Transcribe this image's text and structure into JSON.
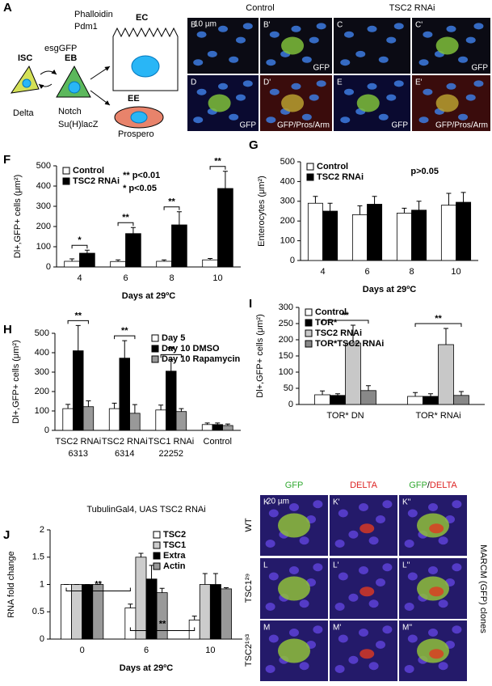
{
  "diagram": {
    "label": "A",
    "phalloidin": "Phalloidin",
    "pdm1": "Pdm1",
    "esggfp": "esgGFP",
    "isc": "ISC",
    "eb": "EB",
    "ec": "EC",
    "ee": "EE",
    "delta": "Delta",
    "notch": "Notch",
    "suh": "Su(H)lacZ",
    "prospero": "Prospero"
  },
  "micrographs": {
    "top_headers": [
      "Control",
      "TSC2 RNAi"
    ],
    "scale_bars": [
      "10 µm",
      "20 µm"
    ],
    "top_panels": [
      {
        "label": "B"
      },
      {
        "label": "B'",
        "channel": "GFP"
      },
      {
        "label": "C"
      },
      {
        "label": "C'",
        "channel": "GFP"
      },
      {
        "label": "D",
        "channel": "GFP"
      },
      {
        "label": "D'",
        "channel": "GFP/Pros/Arm"
      },
      {
        "label": "E",
        "channel": "GFP"
      },
      {
        "label": "E'",
        "channel": "GFP/Pros/Arm"
      }
    ],
    "bottom_headers": {
      "gfp": "GFP",
      "delta": "DELTA",
      "merge": [
        "GFP",
        "/",
        "DELTA"
      ]
    },
    "row_labels": [
      "WT",
      "TSC1²⁹",
      "TSC2¹⁹³"
    ],
    "side_label": "MARCM (GFP) clones",
    "bottom_panels": [
      "K",
      "K'",
      "K''",
      "L",
      "L'",
      "L''",
      "M",
      "M'",
      "M''"
    ]
  },
  "chart_data": [
    {
      "type": "bar",
      "panel": "F",
      "ylabel": "Dl+,GFP+ cells (μm²)",
      "xlabel": "Days at 29ºC",
      "categories": [
        "4",
        "6",
        "8",
        "10"
      ],
      "series": [
        {
          "name": "Control",
          "color": "#ffffff",
          "values": [
            28,
            27,
            28,
            35
          ],
          "errors": [
            12,
            8,
            7,
            7
          ]
        },
        {
          "name": "TSC2 RNAi",
          "color": "#000000",
          "values": [
            68,
            165,
            208,
            388
          ],
          "errors": [
            15,
            30,
            65,
            85
          ]
        }
      ],
      "significance": [
        "*",
        "**",
        "**",
        "**"
      ],
      "notes": [
        "** p<0.01",
        "* p<0.05"
      ],
      "ylim": [
        0,
        500
      ],
      "yticks": [
        0,
        100,
        200,
        300,
        400,
        500
      ],
      "legend": "top-left"
    },
    {
      "type": "bar",
      "panel": "G",
      "ylabel": "Enterocytes (μm²)",
      "xlabel": "Days at 29ºC",
      "categories": [
        "4",
        "6",
        "8",
        "10"
      ],
      "series": [
        {
          "name": "Control",
          "color": "#ffffff",
          "values": [
            290,
            232,
            240,
            280
          ],
          "errors": [
            35,
            45,
            25,
            60
          ]
        },
        {
          "name": "TSC2 RNAi",
          "color": "#000000",
          "values": [
            250,
            285,
            255,
            295
          ],
          "errors": [
            40,
            40,
            45,
            50
          ]
        }
      ],
      "notes": [
        "p>0.05"
      ],
      "ylim": [
        0,
        500
      ],
      "yticks": [
        0,
        100,
        200,
        300,
        400,
        500
      ],
      "legend": "top-left"
    },
    {
      "type": "bar",
      "panel": "H",
      "ylabel": "Dl+,GFP+ cells (μm²)",
      "categories": [
        "TSC2 RNAi",
        "TSC2 RNAi",
        "TSC1 RNAi",
        "Control"
      ],
      "category_sublabels": [
        "6313",
        "6314",
        "22252",
        null
      ],
      "series": [
        {
          "name": "Day 5",
          "color": "#ffffff",
          "values": [
            112,
            112,
            105,
            30
          ],
          "errors": [
            22,
            28,
            25,
            8
          ]
        },
        {
          "name": "Day 10  DMSO",
          "color": "#000000",
          "values": [
            410,
            372,
            305,
            30
          ],
          "errors": [
            130,
            90,
            60,
            8
          ]
        },
        {
          "name": "Day 10 Rapamycin",
          "color": "#999999",
          "values": [
            122,
            88,
            97,
            25
          ],
          "errors": [
            30,
            45,
            15,
            8
          ]
        }
      ],
      "significance": [
        "**",
        "**",
        "**",
        null
      ],
      "ylim": [
        0,
        500
      ],
      "yticks": [
        0,
        100,
        200,
        300,
        400,
        500
      ],
      "legend": "top-right"
    },
    {
      "type": "bar",
      "panel": "I",
      "ylabel": "Dl+,GFP+ cells (μm²)",
      "categories": [
        "TOR* DN",
        "TOR* RNAi"
      ],
      "series": [
        {
          "name": "Control",
          "color": "#ffffff",
          "values": [
            30,
            25
          ],
          "errors": [
            12,
            12
          ]
        },
        {
          "name": "TOR*",
          "color": "#000000",
          "values": [
            28,
            25
          ],
          "errors": [
            5,
            8
          ]
        },
        {
          "name": "TSC2 RNAi",
          "color": "#c8c8c8",
          "values": [
            190,
            185
          ],
          "errors": [
            55,
            50
          ]
        },
        {
          "name": "TOR*TSC2 RNAi",
          "color": "#888888",
          "values": [
            43,
            28
          ],
          "errors": [
            15,
            12
          ]
        }
      ],
      "significance": [
        "**",
        "**"
      ],
      "ylim": [
        0,
        300
      ],
      "yticks": [
        0,
        50,
        100,
        150,
        200,
        250,
        300
      ],
      "legend": "top-left"
    },
    {
      "type": "bar",
      "panel": "J",
      "title": "TubulinGal4, UAS TSC2 RNAi",
      "ylabel": "RNA fold change",
      "xlabel": "Days at 29ºC",
      "categories": [
        "0",
        "6",
        "10"
      ],
      "series": [
        {
          "name": "TSC2",
          "color": "#ffffff",
          "values": [
            1,
            0.57,
            0.35
          ],
          "errors": [
            0,
            0.07,
            0.07
          ]
        },
        {
          "name": "TSC1",
          "color": "#cccccc",
          "values": [
            1,
            1.5,
            1.0
          ],
          "errors": [
            0,
            0.07,
            0.2
          ]
        },
        {
          "name": "Extra",
          "color": "#000000",
          "values": [
            1,
            1.1,
            1.0
          ],
          "errors": [
            0,
            0.25,
            0.2
          ]
        },
        {
          "name": "Actin",
          "color": "#999999",
          "values": [
            1,
            0.85,
            0.92
          ],
          "errors": [
            0,
            0.08,
            0.02
          ]
        }
      ],
      "significance": [
        "**",
        "**"
      ],
      "ylim": [
        0,
        2
      ],
      "yticks": [
        0,
        0.5,
        1,
        1.5,
        2
      ],
      "legend": "top-right"
    }
  ]
}
